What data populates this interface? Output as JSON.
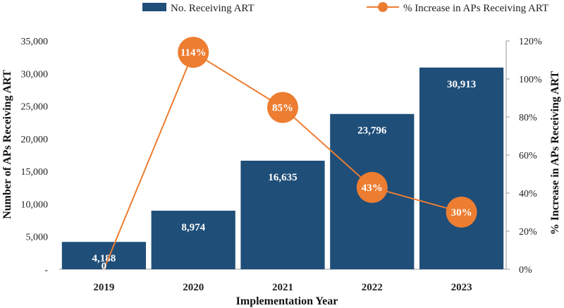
{
  "chart_data": {
    "type": "bar",
    "categories": [
      "2019",
      "2020",
      "2021",
      "2022",
      "2023"
    ],
    "series": [
      {
        "name": "No. Receiving ART",
        "type": "bar",
        "axis": "left",
        "values": [
          4188,
          8974,
          16635,
          23796,
          30913
        ],
        "labels": [
          "4,188",
          "8,974",
          "16,635",
          "23,796",
          "30,913"
        ],
        "color": "#1f4e79"
      },
      {
        "name": "% Increase in APs Receiving ART",
        "type": "line",
        "axis": "right",
        "values": [
          0,
          114,
          85,
          43,
          30
        ],
        "labels": [
          "0",
          "114%",
          "85%",
          "43%",
          "30%"
        ],
        "color": "#ed7d31"
      }
    ],
    "xlabel": "Implementation Year",
    "ylabel": "Number of APs Receiving ART",
    "y2label": "% Increase in APs Receiving ART",
    "ylim": [
      0,
      35000
    ],
    "y2lim": [
      0,
      120
    ],
    "yticks": [
      "-",
      "5,000",
      "10,000",
      "15,000",
      "20,000",
      "25,000",
      "30,000",
      "35,000"
    ],
    "y2ticks": [
      "0%",
      "20%",
      "40%",
      "60%",
      "80%",
      "100%",
      "120%"
    ],
    "legend_position": "top",
    "grid": false
  }
}
